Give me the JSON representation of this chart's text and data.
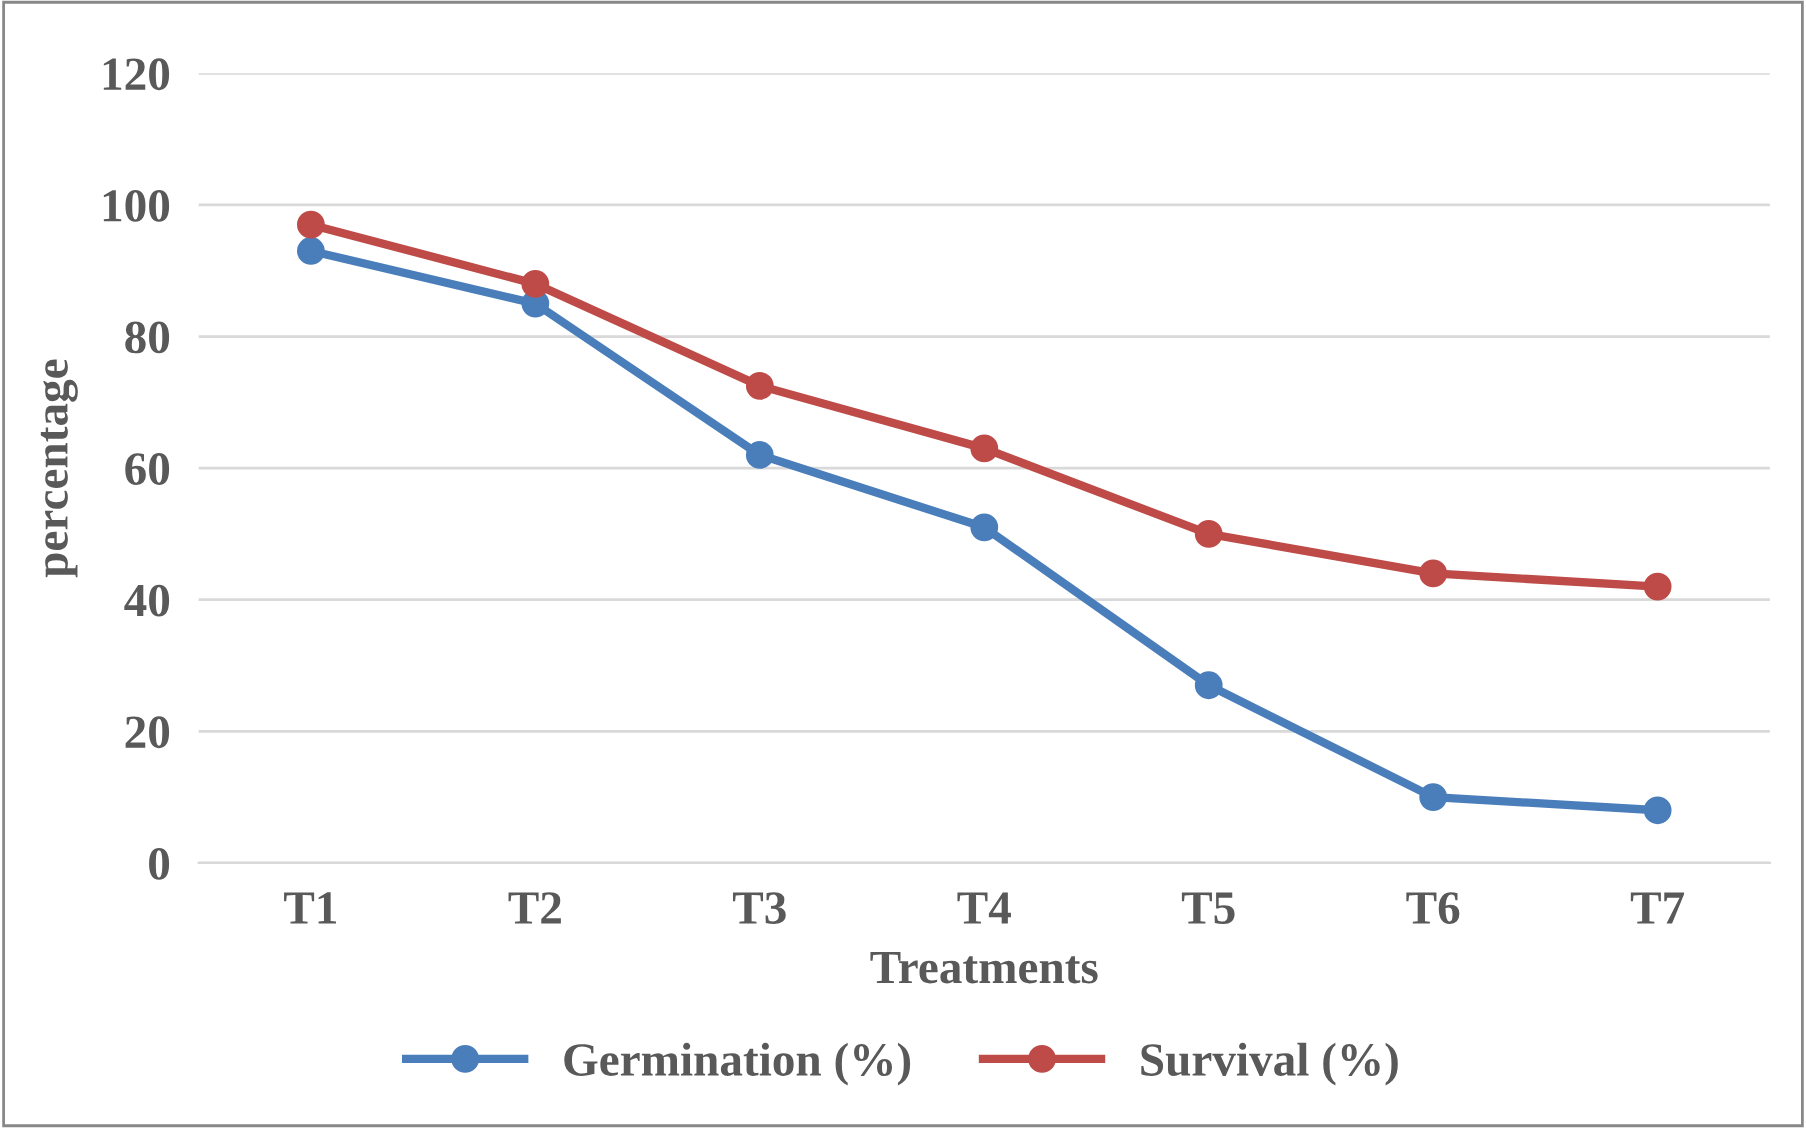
{
  "chart_data": {
    "type": "line",
    "xlabel": "Treatments",
    "ylabel": "percentage",
    "categories": [
      "T1",
      "T2",
      "T3",
      "T4",
      "T5",
      "T6",
      "T7"
    ],
    "series": [
      {
        "name": "Germination (%)",
        "color": "#4a7ebb",
        "values": [
          93,
          85,
          62,
          51,
          27,
          10,
          8
        ]
      },
      {
        "name": "Survival (%)",
        "color": "#be4b48",
        "values": [
          97,
          88,
          72.5,
          63,
          50,
          44,
          42
        ]
      }
    ],
    "ylim": [
      0,
      120
    ],
    "yticks": [
      0,
      20,
      40,
      60,
      80,
      100,
      120
    ],
    "grid": "y",
    "legend": "bottom",
    "marker": "circle",
    "line_style": "solid"
  }
}
